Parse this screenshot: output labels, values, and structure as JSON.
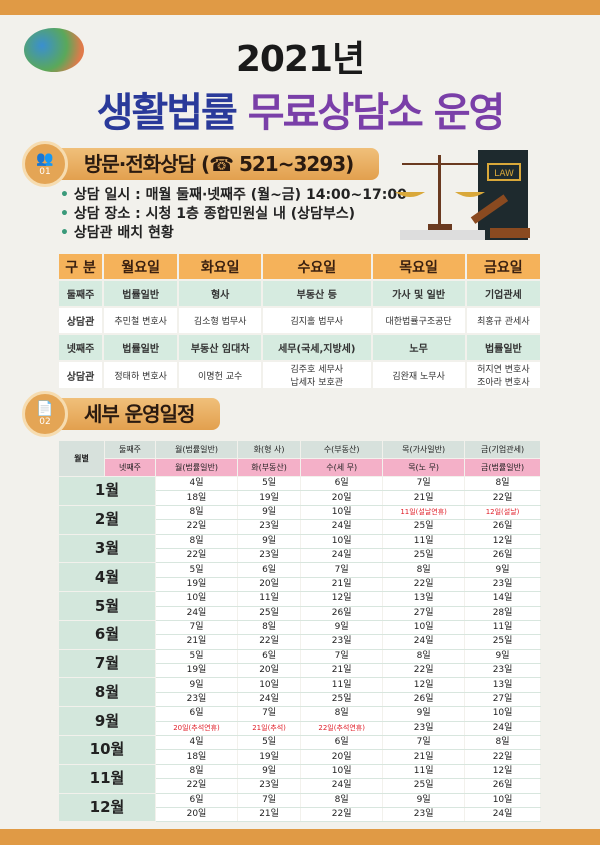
{
  "header": {
    "year": "2021년",
    "title_a": "생활법률",
    "title_b": "무료상담소 운영"
  },
  "colors": {
    "accent": "#e09a45",
    "title_blue": "#2a3a9a",
    "title_purple": "#7a3fa8",
    "holiday": "#e0202a"
  },
  "section1": {
    "number": "01",
    "title": "방문·전화상담 (☎ 521~3293)",
    "bullets": [
      "상담 일시 : 매월 둘째·넷째주 (월~금) 14:00~17:00",
      "상담 장소 : 시청 1층 종합민원실 내 (상담부스)",
      "상담관 배치 현황"
    ],
    "law_label": "LAW",
    "table": {
      "headers": [
        "구 분",
        "월요일",
        "화요일",
        "수요일",
        "목요일",
        "금요일"
      ],
      "rows": [
        [
          "둘째주",
          "법률일반",
          "형사",
          "부동산 등",
          "가사 및 일반",
          "기업관세"
        ],
        [
          "상담관",
          "추민철 변호사",
          "김소형 법무사",
          "김지홀 법무사",
          "대한법률구조공단",
          "최홍규 관세사"
        ],
        [
          "넷째주",
          "법률일반",
          "부동산 임대차",
          "세무(국세,지방세)",
          "노무",
          "법률일반"
        ],
        [
          "상담관",
          "정태하 변호사",
          "이명헌 교수",
          "김주호 세무사\n납세자 보호관",
          "김완재 노무사",
          "허지연 변호사\n조아라 변호사"
        ]
      ]
    }
  },
  "section2": {
    "number": "02",
    "title": "세부 운영일정",
    "schedule": {
      "corner": "월별",
      "week2": "둘째주",
      "week4": "넷째주",
      "head2": [
        "월(법률일반)",
        "화(형  사)",
        "수(부동산)",
        "목(가사일반)",
        "금(기업관세)"
      ],
      "head4": [
        "월(법률일반)",
        "화(부동산)",
        "수(세  무)",
        "목(노  무)",
        "금(법률일반)"
      ],
      "months": [
        {
          "month": "1월",
          "rows": [
            [
              "4일",
              "5일",
              "6일",
              "7일",
              "8일"
            ],
            [
              "18일",
              "19일",
              "20일",
              "21일",
              "22일"
            ]
          ]
        },
        {
          "month": "2월",
          "rows": [
            [
              "8일",
              "9일",
              "10일",
              "11일(설날연휴)",
              "12일(설날)"
            ],
            [
              "22일",
              "23일",
              "24일",
              "25일",
              "26일"
            ]
          ]
        },
        {
          "month": "3월",
          "rows": [
            [
              "8일",
              "9일",
              "10일",
              "11일",
              "12일"
            ],
            [
              "22일",
              "23일",
              "24일",
              "25일",
              "26일"
            ]
          ]
        },
        {
          "month": "4월",
          "rows": [
            [
              "5일",
              "6일",
              "7일",
              "8일",
              "9일"
            ],
            [
              "19일",
              "20일",
              "21일",
              "22일",
              "23일"
            ]
          ]
        },
        {
          "month": "5월",
          "rows": [
            [
              "10일",
              "11일",
              "12일",
              "13일",
              "14일"
            ],
            [
              "24일",
              "25일",
              "26일",
              "27일",
              "28일"
            ]
          ]
        },
        {
          "month": "6월",
          "rows": [
            [
              "7일",
              "8일",
              "9일",
              "10일",
              "11일"
            ],
            [
              "21일",
              "22일",
              "23일",
              "24일",
              "25일"
            ]
          ]
        },
        {
          "month": "7월",
          "rows": [
            [
              "5일",
              "6일",
              "7일",
              "8일",
              "9일"
            ],
            [
              "19일",
              "20일",
              "21일",
              "22일",
              "23일"
            ]
          ]
        },
        {
          "month": "8월",
          "rows": [
            [
              "9일",
              "10일",
              "11일",
              "12일",
              "13일"
            ],
            [
              "23일",
              "24일",
              "25일",
              "26일",
              "27일"
            ]
          ]
        },
        {
          "month": "9월",
          "rows": [
            [
              "6일",
              "7일",
              "8일",
              "9일",
              "10일"
            ],
            [
              "20일(추석연휴)",
              "21일(추석)",
              "22일(추석연휴)",
              "23일",
              "24일"
            ]
          ]
        },
        {
          "month": "10월",
          "rows": [
            [
              "4일",
              "5일",
              "6일",
              "7일",
              "8일"
            ],
            [
              "18일",
              "19일",
              "20일",
              "21일",
              "22일"
            ]
          ]
        },
        {
          "month": "11월",
          "rows": [
            [
              "8일",
              "9일",
              "10일",
              "11일",
              "12일"
            ],
            [
              "22일",
              "23일",
              "24일",
              "25일",
              "26일"
            ]
          ]
        },
        {
          "month": "12월",
          "rows": [
            [
              "6일",
              "7일",
              "8일",
              "9일",
              "10일"
            ],
            [
              "20일",
              "21일",
              "22일",
              "23일",
              "24일"
            ]
          ]
        }
      ]
    }
  }
}
